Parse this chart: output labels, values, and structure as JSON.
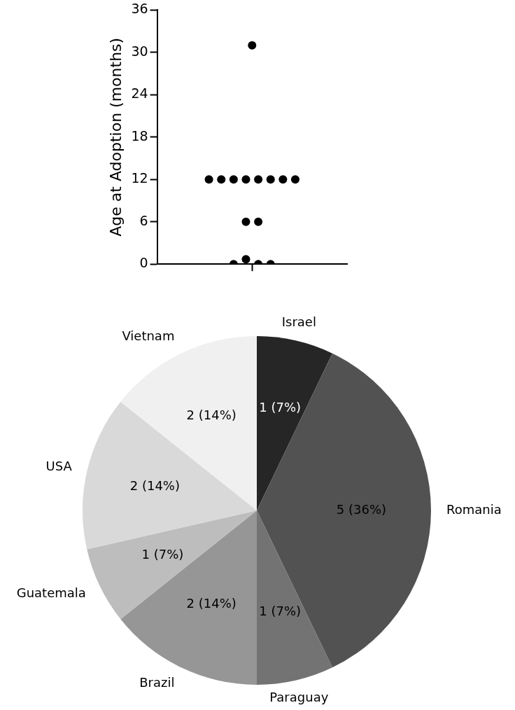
{
  "chart_data": [
    {
      "type": "scatter",
      "ylabel": "Age at Adoption (months)",
      "categories": [
        null
      ],
      "series": [
        {
          "color": "#000000",
          "x": [
            null,
            null,
            null,
            null,
            null,
            null,
            null,
            null,
            null,
            null,
            null,
            null,
            null,
            null,
            null
          ],
          "values": [
            31,
            12,
            12,
            12,
            12,
            12,
            12,
            12,
            12,
            6,
            6,
            0,
            0.7,
            0,
            0
          ]
        }
      ],
      "ylim": [
        0,
        36
      ],
      "yticks": [
        0,
        6,
        12,
        18,
        24,
        30,
        36
      ],
      "tick_labels": "y",
      "marker": "circle",
      "grid": false,
      "legend": false
    },
    {
      "type": "pie",
      "categories": [
        "Israel",
        "Romania",
        "Paraguay",
        "Brazil",
        "Guatemala",
        "USA",
        "Vietnam"
      ],
      "values": [
        1,
        5,
        1,
        2,
        1,
        2,
        2
      ],
      "colors": [
        "#262626",
        "#525252",
        "#737373",
        "#969696",
        "#bdbdbd",
        "#d9d9d9",
        "#f0f0f0"
      ],
      "value_labels": [
        "1 (7%)",
        "5 (36%)",
        "1 (7%)",
        "2 (14%)",
        "1 (7%)",
        "2 (14%)",
        "2 (14%)"
      ],
      "legend": false
    }
  ]
}
